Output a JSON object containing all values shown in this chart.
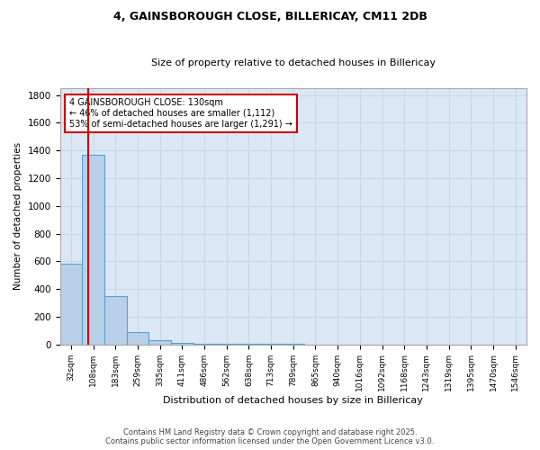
{
  "title_line1": "4, GAINSBOROUGH CLOSE, BILLERICAY, CM11 2DB",
  "title_line2": "Size of property relative to detached houses in Billericay",
  "xlabel": "Distribution of detached houses by size in Billericay",
  "ylabel": "Number of detached properties",
  "categories": [
    "32sqm",
    "108sqm",
    "183sqm",
    "259sqm",
    "335sqm",
    "411sqm",
    "486sqm",
    "562sqm",
    "638sqm",
    "713sqm",
    "789sqm",
    "865sqm",
    "940sqm",
    "1016sqm",
    "1092sqm",
    "1168sqm",
    "1243sqm",
    "1319sqm",
    "1395sqm",
    "1470sqm",
    "1546sqm"
  ],
  "bar_heights": [
    580,
    1370,
    350,
    90,
    30,
    10,
    5,
    3,
    2,
    1,
    1,
    0,
    0,
    0,
    0,
    0,
    0,
    0,
    0,
    0,
    0
  ],
  "bar_color": "#b8d0e8",
  "bar_edgecolor": "#5a9fd4",
  "background_color": "#dce8f5",
  "grid_color": "#c8d8e8",
  "annotation_title": "4 GAINSBOROUGH CLOSE: 130sqm",
  "annotation_line2": "← 46% of detached houses are smaller (1,112)",
  "annotation_line3": "53% of semi-detached houses are larger (1,291) →",
  "annotation_box_color": "#ffffff",
  "annotation_box_edgecolor": "#cc0000",
  "red_line_color": "#cc0000",
  "ylim": [
    0,
    1850
  ],
  "yticks": [
    0,
    200,
    400,
    600,
    800,
    1000,
    1200,
    1400,
    1600,
    1800
  ],
  "footnote_line1": "Contains HM Land Registry data © Crown copyright and database right 2025.",
  "footnote_line2": "Contains public sector information licensed under the Open Government Licence v3.0."
}
